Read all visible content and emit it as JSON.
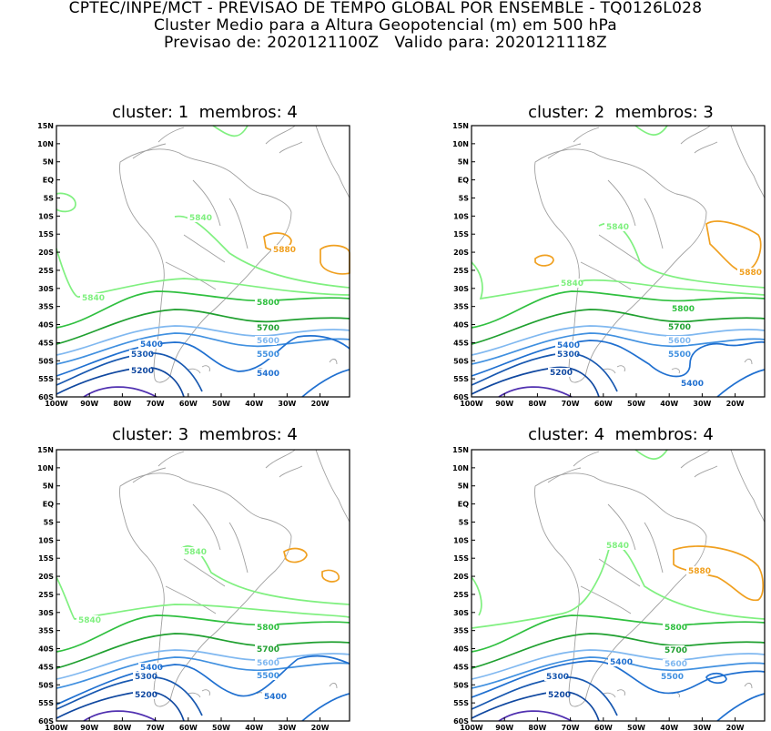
{
  "header": {
    "line1": "CPTEC/INPE/MCT - PREVISAO DE TEMPO GLOBAL POR ENSEMBLE - TQ0126L028",
    "line2": "Cluster Medio para a Altura Geopotencial (m) em 500 hPa",
    "line3": "Previsao de: 2020121100Z   Valido para: 2020121118Z"
  },
  "lat_labels": [
    "15N",
    "10N",
    "5N",
    "EQ",
    "5S",
    "10S",
    "15S",
    "20S",
    "25S",
    "30S",
    "35S",
    "40S",
    "45S",
    "50S",
    "55S",
    "60S"
  ],
  "lon_labels": [
    "100W",
    "90W",
    "80W",
    "70W",
    "60W",
    "50W",
    "40W",
    "30W",
    "20W"
  ],
  "colors": {
    "c5880": "#f0a020",
    "c5840": "#80f080",
    "c5800": "#30c040",
    "c5700": "#20a030",
    "c5600": "#80b8f0",
    "c5500": "#4090e0",
    "c5400": "#2070d0",
    "c5300": "#1858b0",
    "c5200": "#1048a0",
    "c5100": "#5030b0",
    "coast": "#a0a0a0",
    "frame": "#000000"
  },
  "panels": [
    {
      "title": "cluster: 1  membros: 4",
      "labels": {
        "l5840a": "5840",
        "l5840b": "5840",
        "l5880": "5880",
        "l5800": "5800",
        "l5700": "5700",
        "l5600": "5600",
        "l5500": "5500",
        "l5400a": "5400",
        "l5400b": "5400",
        "l5300": "5300",
        "l5200": "5200"
      }
    },
    {
      "title": "cluster: 2  membros: 3",
      "labels": {
        "l5840a": "5840",
        "l5840b": "5840",
        "l5880": "5880",
        "l5800": "5800",
        "l5700": "5700",
        "l5600": "5600",
        "l5500": "5500",
        "l5400a": "5400",
        "l5400b": "5400",
        "l5300": "5300",
        "l5200": "5200"
      }
    },
    {
      "title": "cluster: 3  membros: 4",
      "labels": {
        "l5840a": "5840",
        "l5840b": "5840",
        "l5800": "5800",
        "l5700": "5700",
        "l5600": "5600",
        "l5500": "5500",
        "l5400a": "5400",
        "l5400b": "5400",
        "l5300": "5300",
        "l5200": "5200"
      }
    },
    {
      "title": "cluster: 4  membros: 4",
      "labels": {
        "l5840a": "5840",
        "l5880": "5880",
        "l5800": "5800",
        "l5700": "5700",
        "l5600": "5600",
        "l5500": "5500",
        "l5400a": "5400",
        "l5300": "5300",
        "l5200": "5200"
      }
    }
  ]
}
